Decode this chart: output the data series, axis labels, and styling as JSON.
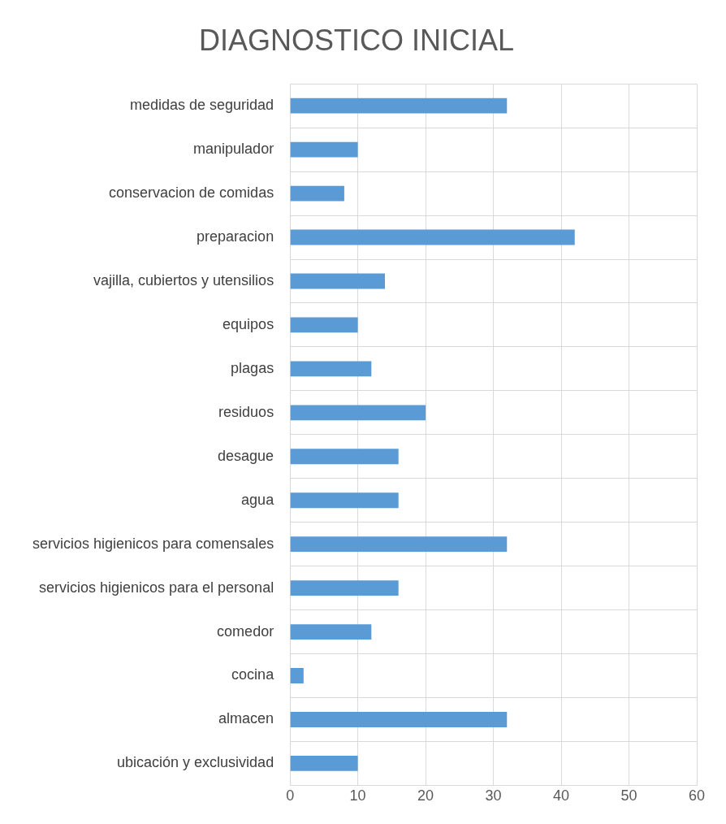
{
  "chart_data": {
    "type": "bar",
    "orientation": "horizontal",
    "title": "DIAGNOSTICO INICIAL",
    "categories": [
      "medidas de seguridad",
      "manipulador",
      "conservacion de comidas",
      "preparacion",
      "vajilla, cubiertos y utensilios",
      "equipos",
      "plagas",
      "residuos",
      "desague",
      "agua",
      "servicios higienicos para comensales",
      "servicios higienicos para el personal",
      "comedor",
      "cocina",
      "almacen",
      "ubicación y exclusividad"
    ],
    "values": [
      32,
      10,
      8,
      42,
      14,
      10,
      12,
      20,
      16,
      16,
      32,
      16,
      12,
      2,
      32,
      10
    ],
    "color": "#5b9bd5",
    "xlim": [
      0,
      60
    ],
    "xticks": [
      0,
      10,
      20,
      30,
      40,
      50,
      60
    ],
    "grid": true,
    "legend": false
  }
}
